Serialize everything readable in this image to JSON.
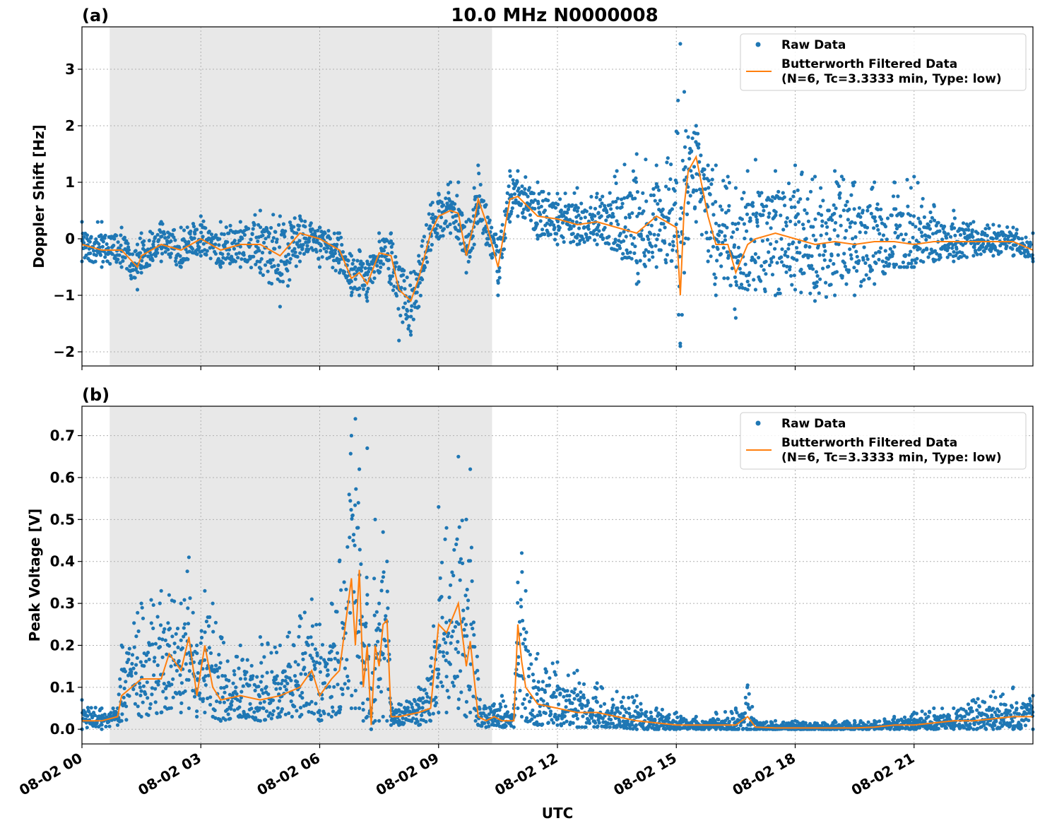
{
  "figure": {
    "title": "10.0 MHz N0000008",
    "xlabel": "UTC"
  },
  "colors": {
    "raw": "#1f77b4",
    "filtered": "#ff7f0e",
    "night_shade": "#e8e8e8"
  },
  "chart_data": [
    {
      "type": "scatter",
      "panel_label": "(a)",
      "ylabel": "Doppler Shift [Hz]",
      "xlim_hours": [
        0,
        24
      ],
      "ylim": [
        -2.25,
        3.75
      ],
      "yticks": [
        -2,
        -1,
        0,
        1,
        2,
        3
      ],
      "yticklabels": [
        "−2",
        "−1",
        "0",
        "1",
        "2",
        "3"
      ],
      "xtick_hours": [
        0,
        3,
        6,
        9,
        12,
        15,
        18,
        21
      ],
      "xticklabels": [
        "08-02 00",
        "08-02 03",
        "08-02 06",
        "08-02 09",
        "08-02 12",
        "08-02 15",
        "08-02 18",
        "08-02 21"
      ],
      "shaded_interval_hours": [
        0.7,
        10.35
      ],
      "grid": true,
      "legend": {
        "placement": "top-right",
        "raw_label": "Raw Data",
        "filtered_label_line1": "Butterworth Filtered Data",
        "filtered_label_line2": "(N=6, Tc=3.3333 min, Type: low)"
      },
      "series": [
        {
          "name": "Butterworth Filtered Data",
          "x_hours": [
            0.0,
            0.5,
            1.0,
            1.4,
            1.5,
            2.0,
            2.5,
            3.0,
            3.5,
            4.0,
            4.5,
            5.0,
            5.5,
            6.0,
            6.5,
            6.8,
            7.0,
            7.2,
            7.5,
            7.8,
            8.0,
            8.3,
            8.5,
            8.8,
            9.0,
            9.3,
            9.5,
            9.7,
            9.9,
            10.0,
            10.2,
            10.5,
            10.8,
            11.0,
            11.5,
            12.0,
            12.5,
            13.0,
            13.5,
            14.0,
            14.5,
            15.0,
            15.1,
            15.2,
            15.3,
            15.5,
            15.8,
            16.0,
            16.3,
            16.5,
            16.8,
            17.0,
            17.5,
            18.0,
            18.5,
            19.0,
            19.5,
            20.0,
            20.5,
            21.0,
            21.5,
            22.0,
            22.5,
            23.0,
            23.5,
            24.0
          ],
          "y": [
            -0.1,
            -0.2,
            -0.2,
            -0.5,
            -0.3,
            -0.1,
            -0.2,
            0.0,
            -0.2,
            -0.1,
            -0.1,
            -0.3,
            0.1,
            0.0,
            -0.2,
            -0.7,
            -0.6,
            -0.8,
            -0.25,
            -0.3,
            -0.9,
            -1.1,
            -0.7,
            0.1,
            0.4,
            0.5,
            0.45,
            -0.3,
            0.3,
            0.7,
            0.3,
            -0.5,
            0.7,
            0.75,
            0.4,
            0.35,
            0.25,
            0.3,
            0.2,
            0.1,
            0.4,
            0.2,
            -1.0,
            0.6,
            1.2,
            1.45,
            0.4,
            -0.1,
            -0.1,
            -0.6,
            -0.1,
            0.0,
            0.1,
            0.0,
            -0.1,
            -0.05,
            -0.1,
            -0.05,
            -0.05,
            -0.1,
            -0.05,
            -0.05,
            -0.05,
            -0.05,
            -0.05,
            -0.2
          ]
        },
        {
          "name": "Raw Data",
          "x_hours": [
            0.0,
            0.5,
            1.0,
            1.4,
            1.5,
            2.0,
            2.5,
            3.0,
            3.5,
            4.0,
            4.5,
            5.0,
            5.5,
            6.0,
            6.5,
            6.8,
            7.0,
            7.2,
            7.5,
            7.8,
            8.0,
            8.3,
            8.5,
            8.8,
            9.0,
            9.3,
            9.5,
            9.7,
            9.9,
            10.0,
            10.2,
            10.5,
            10.8,
            11.0,
            11.5,
            12.0,
            12.5,
            13.0,
            13.5,
            14.0,
            14.5,
            15.0,
            15.1,
            15.2,
            15.3,
            15.5,
            15.8,
            16.0,
            16.3,
            16.5,
            16.8,
            17.0,
            17.5,
            18.0,
            18.5,
            19.0,
            19.5,
            20.0,
            20.5,
            21.0,
            21.5,
            22.0,
            22.5,
            23.0,
            23.5,
            24.0
          ],
          "y_min": [
            -0.4,
            -0.5,
            -0.5,
            -0.9,
            -0.6,
            -0.4,
            -0.5,
            -0.3,
            -0.5,
            -0.5,
            -0.6,
            -1.2,
            -0.4,
            -0.5,
            -0.6,
            -1.0,
            -1.0,
            -1.1,
            -0.6,
            -0.8,
            -1.8,
            -1.7,
            -1.2,
            -0.2,
            0.0,
            0.1,
            0.0,
            -0.6,
            -0.1,
            0.3,
            -0.1,
            -1.0,
            0.3,
            0.4,
            0.0,
            -0.1,
            -0.1,
            -0.1,
            -0.2,
            -0.8,
            -0.5,
            -0.5,
            -1.9,
            -0.6,
            0.0,
            0.3,
            -0.4,
            -1.0,
            -0.7,
            -1.4,
            -0.9,
            -0.9,
            -1.0,
            -0.9,
            -1.1,
            -1.0,
            -1.0,
            -0.8,
            -0.5,
            -0.5,
            -0.4,
            -0.4,
            -0.3,
            -0.3,
            -0.3,
            -0.4
          ],
          "y_max": [
            0.3,
            0.3,
            0.2,
            -0.1,
            0.1,
            0.3,
            0.2,
            0.4,
            0.3,
            0.3,
            0.5,
            0.4,
            0.4,
            0.2,
            0.1,
            -0.3,
            -0.2,
            -0.4,
            0.1,
            0.1,
            -0.5,
            -0.6,
            -0.3,
            0.6,
            0.8,
            1.0,
            1.0,
            0.3,
            0.9,
            1.3,
            0.6,
            0.0,
            1.2,
            1.2,
            1.0,
            0.8,
            0.9,
            0.8,
            1.2,
            1.5,
            1.3,
            1.9,
            3.45,
            2.6,
            1.8,
            2.0,
            1.3,
            1.3,
            1.1,
            0.9,
            1.2,
            1.4,
            1.2,
            1.3,
            1.1,
            1.2,
            1.0,
            1.0,
            1.0,
            1.1,
            0.6,
            0.5,
            0.3,
            0.25,
            0.2,
            0.1
          ]
        }
      ]
    },
    {
      "type": "scatter",
      "panel_label": "(b)",
      "ylabel": "Peak Voltage [V]",
      "xlim_hours": [
        0,
        24
      ],
      "ylim": [
        -0.035,
        0.77
      ],
      "yticks": [
        0.0,
        0.1,
        0.2,
        0.3,
        0.4,
        0.5,
        0.6,
        0.7
      ],
      "yticklabels": [
        "0.0",
        "0.1",
        "0.2",
        "0.3",
        "0.4",
        "0.5",
        "0.6",
        "0.7"
      ],
      "xtick_hours": [
        0,
        3,
        6,
        9,
        12,
        15,
        18,
        21
      ],
      "xticklabels": [
        "08-02 00",
        "08-02 03",
        "08-02 06",
        "08-02 09",
        "08-02 12",
        "08-02 15",
        "08-02 18",
        "08-02 21"
      ],
      "shaded_interval_hours": [
        0.7,
        10.35
      ],
      "grid": true,
      "legend": {
        "placement": "top-right",
        "raw_label": "Raw Data",
        "filtered_label_line1": "Butterworth Filtered Data",
        "filtered_label_line2": "(N=6, Tc=3.3333 min, Type: low)"
      },
      "series": [
        {
          "name": "Butterworth Filtered Data",
          "x_hours": [
            0.0,
            0.5,
            0.9,
            1.0,
            1.5,
            2.0,
            2.2,
            2.5,
            2.7,
            2.9,
            3.1,
            3.3,
            3.5,
            4.0,
            4.5,
            5.0,
            5.5,
            5.8,
            6.0,
            6.3,
            6.5,
            6.8,
            6.9,
            7.0,
            7.1,
            7.2,
            7.3,
            7.4,
            7.5,
            7.6,
            7.7,
            7.8,
            8.0,
            8.5,
            8.8,
            9.0,
            9.2,
            9.5,
            9.7,
            9.8,
            10.0,
            10.2,
            10.4,
            10.6,
            10.9,
            11.0,
            11.1,
            11.2,
            11.5,
            12.0,
            12.5,
            13.0,
            13.5,
            14.0,
            14.5,
            15.0,
            15.5,
            16.0,
            16.5,
            16.8,
            17.0,
            17.5,
            18.0,
            18.5,
            19.0,
            19.5,
            20.0,
            20.5,
            21.0,
            21.5,
            22.0,
            22.5,
            23.0,
            23.5,
            24.0
          ],
          "y": [
            0.02,
            0.02,
            0.03,
            0.08,
            0.12,
            0.12,
            0.18,
            0.14,
            0.22,
            0.08,
            0.2,
            0.1,
            0.07,
            0.08,
            0.07,
            0.08,
            0.1,
            0.14,
            0.08,
            0.12,
            0.14,
            0.36,
            0.2,
            0.38,
            0.1,
            0.2,
            0.01,
            0.2,
            0.15,
            0.25,
            0.26,
            0.03,
            0.03,
            0.04,
            0.05,
            0.25,
            0.23,
            0.3,
            0.15,
            0.21,
            0.03,
            0.02,
            0.03,
            0.02,
            0.02,
            0.25,
            0.16,
            0.1,
            0.06,
            0.05,
            0.04,
            0.04,
            0.03,
            0.02,
            0.015,
            0.01,
            0.01,
            0.01,
            0.01,
            0.03,
            0.005,
            0.003,
            0.003,
            0.003,
            0.003,
            0.003,
            0.005,
            0.01,
            0.01,
            0.015,
            0.02,
            0.02,
            0.025,
            0.03,
            0.03
          ]
        },
        {
          "name": "Raw Data",
          "x_hours": [
            0.0,
            0.5,
            0.9,
            1.0,
            1.5,
            2.0,
            2.2,
            2.5,
            2.7,
            2.9,
            3.1,
            3.3,
            3.5,
            4.0,
            4.5,
            5.0,
            5.5,
            5.8,
            6.0,
            6.3,
            6.5,
            6.8,
            6.9,
            7.0,
            7.1,
            7.2,
            7.3,
            7.4,
            7.5,
            7.6,
            7.7,
            7.8,
            8.0,
            8.5,
            8.8,
            9.0,
            9.2,
            9.5,
            9.7,
            9.8,
            10.0,
            10.2,
            10.4,
            10.6,
            10.9,
            11.0,
            11.1,
            11.2,
            11.5,
            12.0,
            12.5,
            13.0,
            13.5,
            14.0,
            14.5,
            15.0,
            15.5,
            16.0,
            16.5,
            16.8,
            17.0,
            17.5,
            18.0,
            18.5,
            19.0,
            19.5,
            20.0,
            20.5,
            21.0,
            21.5,
            22.0,
            22.5,
            23.0,
            23.5,
            24.0
          ],
          "y_min": [
            0.0,
            0.0,
            0.01,
            0.02,
            0.03,
            0.04,
            0.05,
            0.04,
            0.05,
            0.03,
            0.04,
            0.03,
            0.02,
            0.03,
            0.02,
            0.03,
            0.03,
            0.04,
            0.02,
            0.03,
            0.04,
            0.05,
            0.05,
            0.05,
            0.02,
            0.03,
            0.0,
            0.02,
            0.02,
            0.03,
            0.02,
            0.01,
            0.01,
            0.01,
            0.02,
            0.04,
            0.04,
            0.05,
            0.03,
            0.04,
            0.01,
            0.005,
            0.01,
            0.005,
            0.005,
            0.05,
            0.03,
            0.02,
            0.01,
            0.01,
            0.005,
            0.005,
            0.005,
            0.0,
            0.0,
            0.0,
            0.0,
            0.0,
            0.0,
            0.0,
            0.0,
            0.0,
            0.0,
            0.0,
            0.0,
            0.0,
            0.0,
            0.0,
            0.0,
            0.0,
            0.0,
            0.0,
            0.0,
            0.0,
            0.0
          ],
          "y_max": [
            0.07,
            0.05,
            0.05,
            0.2,
            0.3,
            0.33,
            0.32,
            0.3,
            0.41,
            0.2,
            0.33,
            0.3,
            0.22,
            0.2,
            0.22,
            0.2,
            0.27,
            0.31,
            0.25,
            0.3,
            0.4,
            0.7,
            0.74,
            0.62,
            0.25,
            0.67,
            0.05,
            0.5,
            0.3,
            0.47,
            0.4,
            0.06,
            0.06,
            0.1,
            0.15,
            0.53,
            0.48,
            0.65,
            0.5,
            0.62,
            0.12,
            0.05,
            0.06,
            0.08,
            0.05,
            0.35,
            0.42,
            0.33,
            0.18,
            0.16,
            0.14,
            0.11,
            0.09,
            0.08,
            0.05,
            0.04,
            0.03,
            0.04,
            0.05,
            0.105,
            0.02,
            0.02,
            0.02,
            0.015,
            0.02,
            0.02,
            0.02,
            0.03,
            0.04,
            0.05,
            0.05,
            0.07,
            0.09,
            0.1,
            0.08
          ]
        }
      ]
    }
  ]
}
